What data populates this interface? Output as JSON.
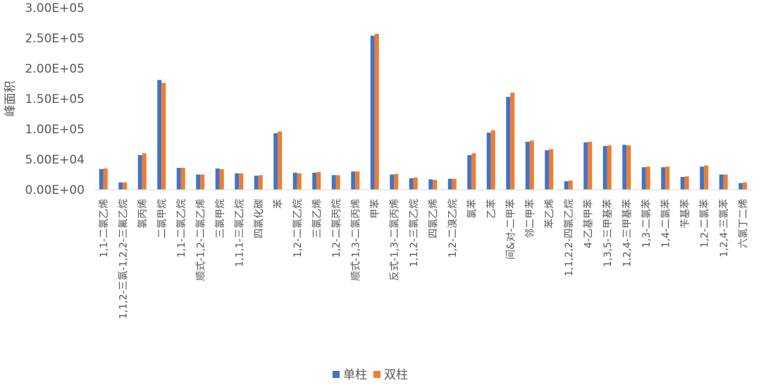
{
  "chart_data": {
    "type": "bar",
    "ylabel": "峰面积",
    "ylim": [
      0,
      300000
    ],
    "yticks": [
      "0.00E+00",
      "5.00E+04",
      "1.00E+05",
      "1.50E+05",
      "2.00E+05",
      "2.50E+05",
      "3.00E+05"
    ],
    "grid": false,
    "legend_position": "bottom",
    "categories": [
      "1,1-二氯乙烯",
      "1,1,2-三氯-1,2,2-三氟乙烷",
      "氯丙烯",
      "二氯甲烷",
      "1,1-二氯乙烷",
      "顺式-1,2-二氯乙烯",
      "三氯甲烷",
      "1,1,1-三氯乙烷",
      "四氯化碳",
      "苯",
      "1,2-二氯乙烷",
      "三氯乙烯",
      "1,2-二氯丙烷",
      "顺式-1,3-二氯丙烯",
      "甲苯",
      "反式-1,3-二氯丙烯",
      "1,1,2-三氯乙烷",
      "四氯乙烯",
      "1,2-二溴乙烷",
      "氯苯",
      "乙苯",
      "间&对-二甲苯",
      "邻二甲苯",
      "苯乙烯",
      "1,1,2,2-四氯乙烷",
      "4-乙基甲苯",
      "1,3,5-三甲基苯",
      "1,2,4-三甲基苯",
      "1,3-二氯苯",
      "1,4-二氯苯",
      "苄基苯",
      "1,2-二氯苯",
      "1,2,4-三氯苯",
      "六氯丁二烯"
    ],
    "series": [
      {
        "name": "单柱",
        "color": "#4472C4",
        "values": [
          34000,
          12000,
          57000,
          181000,
          36000,
          25000,
          35000,
          27000,
          23000,
          93000,
          28000,
          28000,
          24000,
          30000,
          254000,
          25000,
          19000,
          17000,
          18000,
          57000,
          94000,
          153000,
          79000,
          65000,
          14000,
          78000,
          72000,
          74000,
          37000,
          37000,
          21000,
          38000,
          25000,
          11000
        ]
      },
      {
        "name": "双柱",
        "color": "#ED7D31",
        "values": [
          35000,
          12000,
          60000,
          176000,
          36000,
          25000,
          34000,
          27000,
          24000,
          96000,
          27000,
          29000,
          24000,
          30000,
          257000,
          26000,
          20000,
          16000,
          18000,
          60000,
          98000,
          160000,
          81000,
          67000,
          15000,
          79000,
          73000,
          73000,
          38000,
          38000,
          22000,
          40000,
          25000,
          12000
        ]
      }
    ]
  }
}
